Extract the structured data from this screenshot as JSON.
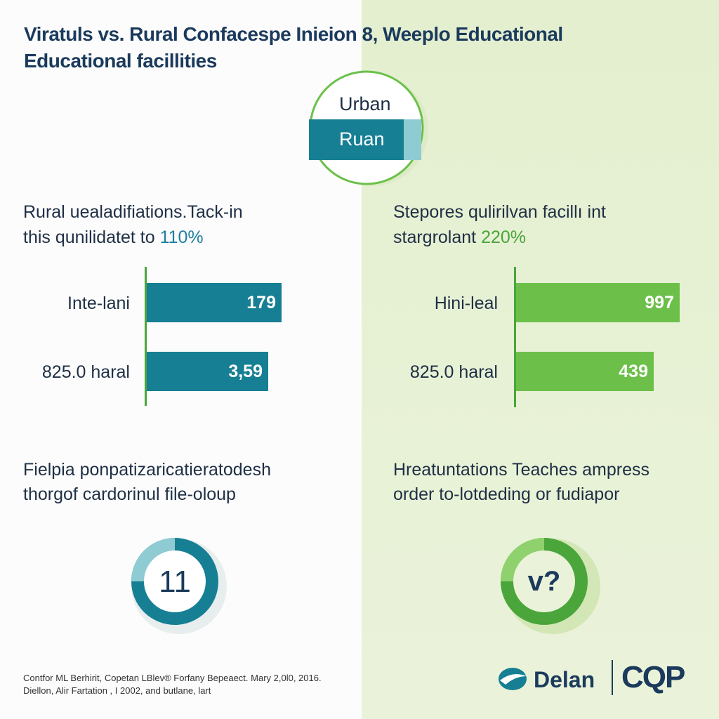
{
  "header": {
    "title_lines": [
      "Viratuls vs. Rural Confacespe Inieion 8, Weeplo Educational",
      "Educational facillities"
    ]
  },
  "toggle": {
    "options": [
      "Urban",
      "Ruan"
    ]
  },
  "panels": [
    {
      "heading_lines": [
        "Rural uealadifiations.Tack-in",
        "this qunilidatet to"
      ],
      "highlight": "110%",
      "rows": [
        {
          "label": "Inte-lani",
          "value": "179"
        },
        {
          "label": "825.0 haral",
          "value": "3,59"
        }
      ],
      "subheading_lines": [
        "Fielpia ponpatizaricatieratodesh",
        "thorgof cardorinul file-oloup"
      ],
      "badge": "11"
    },
    {
      "heading_lines": [
        "Stepores qulirilvan facillı int",
        "stargrolant"
      ],
      "highlight": "220%",
      "rows": [
        {
          "label": "Hini-leal",
          "value": "997"
        },
        {
          "label": "825.0 haral",
          "value": "439"
        }
      ],
      "subheading_lines": [
        "Hreatuntations Teaches ampress",
        "order to-lotdeding or fudiapor"
      ],
      "badge": "v?"
    }
  ],
  "footer": {
    "source_lines": [
      "Contfor ML Berhirit, Copetan LBlev® Forfany Bepeaect. Mary 2,0l0, 2016.",
      "Diellon, Alir Fartation , I 2002, and butlane, lart"
    ],
    "logos": [
      "Delan",
      "CQP"
    ]
  }
}
